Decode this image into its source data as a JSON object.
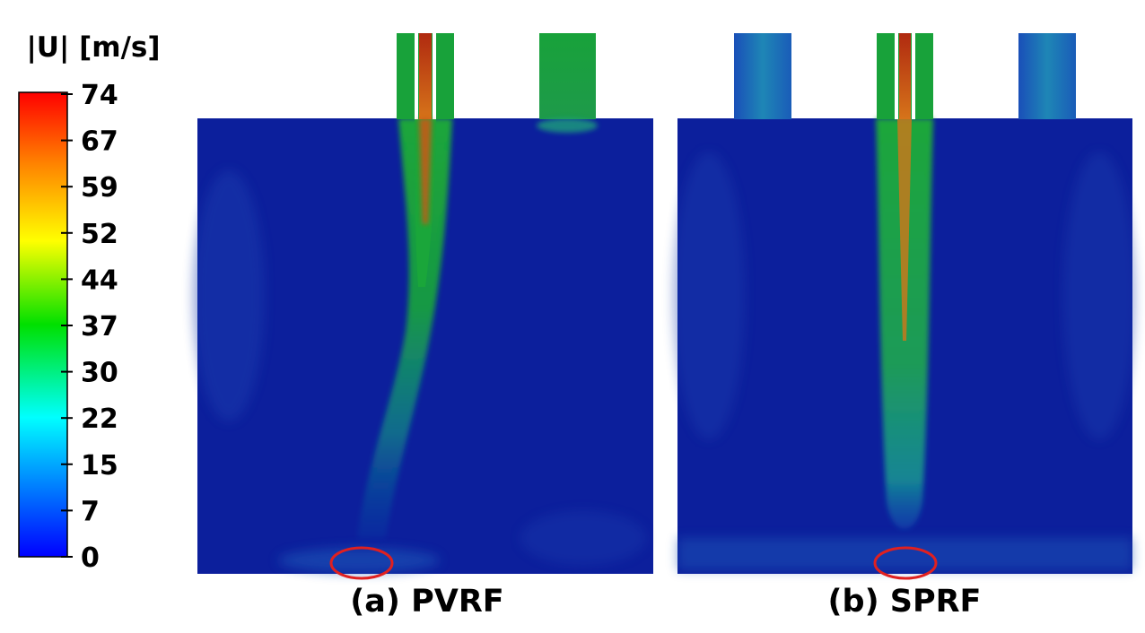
{
  "colorbar": {
    "title": "|U| [m/s]",
    "ticks": [
      "74",
      "67",
      "59",
      "52",
      "44",
      "37",
      "30",
      "22",
      "15",
      "7",
      "0"
    ],
    "colors": [
      "#0000ff",
      "#00ffff",
      "#00ff00",
      "#ffff00",
      "#ff8000",
      "#ff0000"
    ]
  },
  "panels": [
    {
      "caption": "(a) PVRF"
    },
    {
      "caption": "(b) SPRF"
    }
  ],
  "field_colors": {
    "background": "#0c1f9c",
    "jet": "#18a236",
    "core": "#c0311a",
    "highlight": "#e02020"
  }
}
